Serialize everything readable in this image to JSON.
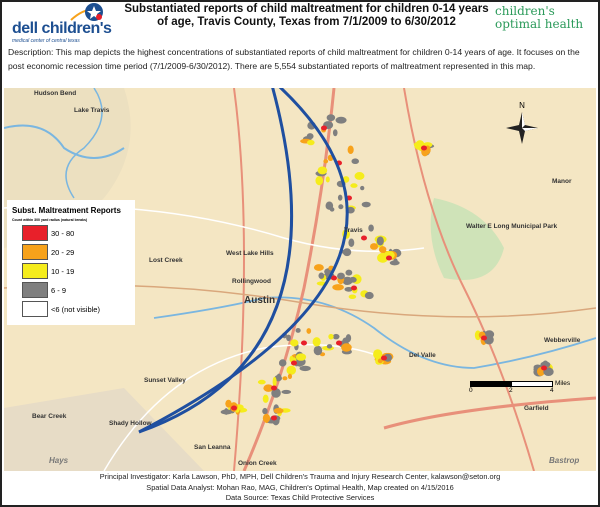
{
  "header": {
    "title": "Substantiated reports of child maltreatment for children 0-14 years of age, Travis County, Texas from 7/1/2009 to 6/30/2012",
    "logo_left": "dell children's",
    "logo_left_sub": "medical center of central texas",
    "logo_right_line1": "children's",
    "logo_right_line2": "optimal health",
    "description": "Description: This map depicts the highest concentrations of substantiated reports of child maltreatment for children 0-14 years of age. It focuses on the post economic recession time period (7/1/2009-6/30/2012). There are 5,554 substantiated reports of maltreatment represented in this map."
  },
  "legend": {
    "title": "Subst. Maltreatment Reports",
    "subtitle": "Count within 300 yard radius (natural breaks)",
    "classes": [
      {
        "label": "30 - 80",
        "color": "#e8202a"
      },
      {
        "label": "20 - 29",
        "color": "#f7a21b"
      },
      {
        "label": "10 - 19",
        "color": "#f5ec1c"
      },
      {
        "label": "6 - 9",
        "color": "#7f7f7f"
      },
      {
        "label": "<6 (not visible)",
        "color": "#ffffff"
      }
    ]
  },
  "map": {
    "north_label": "N",
    "scale_unit": "Miles",
    "scale_ticks": [
      "0",
      "2",
      "4"
    ],
    "crescent_color": "#1f4fa0",
    "places": [
      "Hudson Bend",
      "Lake Travis",
      "West Lake Hills",
      "Lost Creek",
      "Rollingwood",
      "Austin",
      "Sunset Valley",
      "Bear Creek",
      "Shady Hollow",
      "Hays",
      "San Leanna",
      "Onion Creek",
      "Manor",
      "Webberville",
      "Garfield",
      "Bastrop",
      "Del Valle",
      "Travis",
      "Walter E Long Municipal Park"
    ]
  },
  "footer": {
    "line1": "Principal Investigator: Karla Lawson, PhD, MPH, Dell Children's Trauma and Injury Research Center, kalawson@seton.org",
    "line2": "Spatial Data Analyst: Mohan Rao, MAG, Children's Optimal Health, Map created on 4/15/2016",
    "line3": "Data Source: Texas Child Protective Services"
  }
}
